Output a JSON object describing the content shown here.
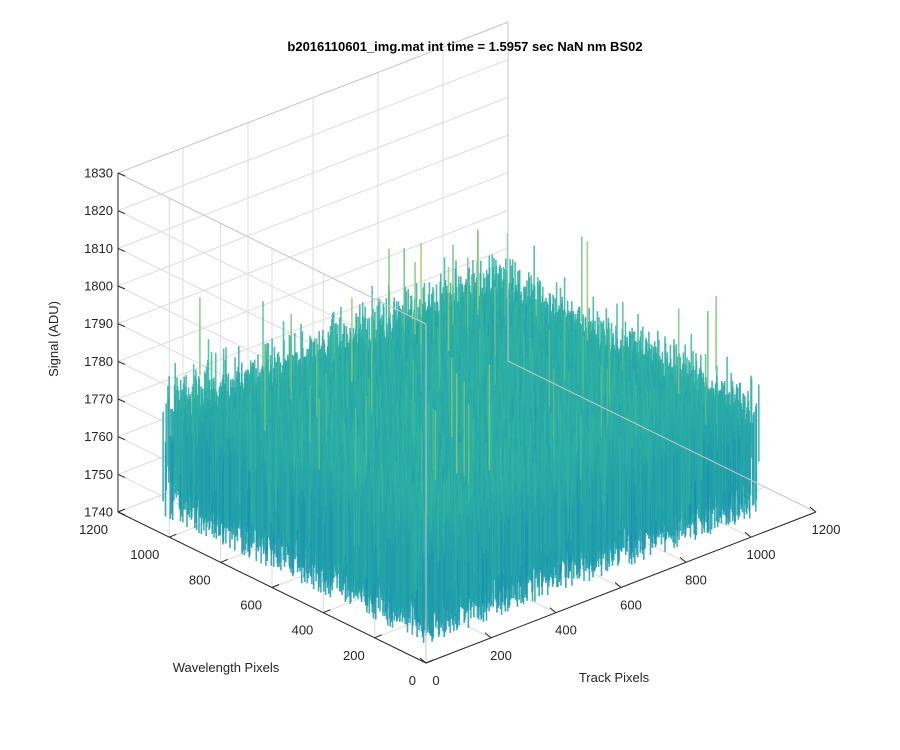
{
  "chart_data": {
    "type": "surface",
    "title": "b2016110601_img.mat int time = 1.5957 sec  NaN nm BS02",
    "xlabel": "Track Pixels",
    "ylabel": "Wavelength Pixels",
    "zlabel": "Signal (ADU)",
    "x_ticks": [
      0,
      200,
      400,
      600,
      800,
      1000,
      1200
    ],
    "y_ticks": [
      0,
      200,
      400,
      600,
      800,
      1000,
      1200
    ],
    "z_ticks": [
      1740,
      1750,
      1760,
      1770,
      1780,
      1790,
      1800,
      1810,
      1820,
      1830
    ],
    "xlim": [
      0,
      1200
    ],
    "ylim": [
      0,
      1200
    ],
    "zlim": [
      1740,
      1830
    ],
    "data_extent": {
      "x": [
        0,
        1024
      ],
      "y": [
        0,
        1024
      ]
    },
    "signal_mean": 1773,
    "signal_range": [
      1745,
      1825
    ],
    "grid": true,
    "box": "3d",
    "colormap": "parula",
    "colors": {
      "low": "#0072bd",
      "mid": "#33b7a0",
      "high": "#e6d64a"
    }
  }
}
